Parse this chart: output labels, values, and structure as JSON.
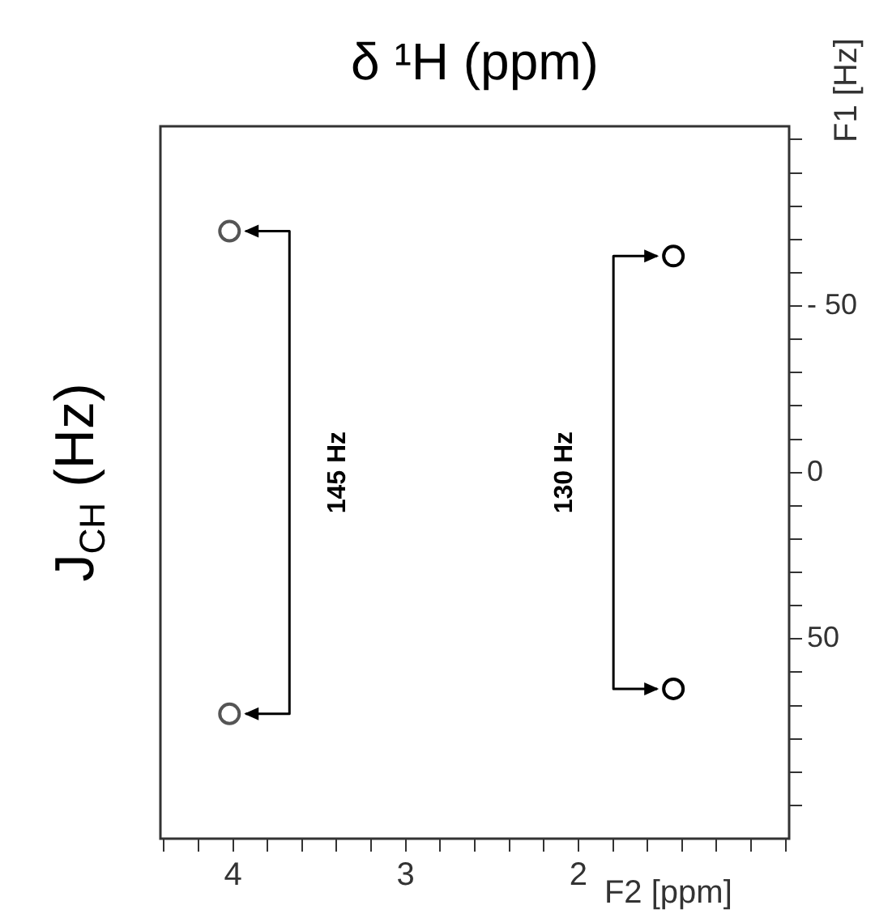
{
  "chart_data": {
    "type": "scatter",
    "title": "δ ¹H (ppm)",
    "xlabel": "F2 [ppm]",
    "ylabel": "F1 [Hz]",
    "annotations": [
      "145 Hz",
      "130 Hz",
      "J$_{CH}$ (Hz)"
    ],
    "x": [
      4.02,
      1.45
    ],
    "series": [
      {
        "colors": [
          "#555555",
          "#000000"
        ],
        "values": [
          -72.5,
          -65
        ]
      },
      {
        "colors": [
          "#555555",
          "#000000"
        ],
        "values": [
          72.5,
          65
        ]
      }
    ],
    "xlim": [
      4.42,
      0.78
    ],
    "xticks": [
      {
        "value": 4.4,
        "label": null
      },
      {
        "value": 4.2,
        "label": null
      },
      4,
      {
        "value": 3.8,
        "label": null
      },
      {
        "value": 3.6,
        "label": null
      },
      {
        "value": 3.4,
        "label": null
      },
      {
        "value": 3.2,
        "label": null
      },
      3,
      {
        "value": 2.8,
        "label": null
      },
      {
        "value": 2.6,
        "label": null
      },
      {
        "value": 2.4,
        "label": null
      },
      {
        "value": 2.2,
        "label": null
      },
      2,
      {
        "value": 1.8,
        "label": null
      },
      {
        "value": 1.6,
        "label": null
      },
      {
        "value": 1.4,
        "label": null
      },
      {
        "value": 1.2,
        "label": null
      },
      {
        "value": 1.0,
        "label": null
      },
      {
        "value": 0.8,
        "label": null
      }
    ],
    "ylim": [
      110,
      -104
    ],
    "yticks": [
      {
        "value": -100,
        "label": null
      },
      {
        "value": -90,
        "label": null
      },
      {
        "value": -80,
        "label": null
      },
      {
        "value": -70,
        "label": null
      },
      {
        "value": -60,
        "label": null
      },
      {
        "value": -50,
        "label": "- 50"
      },
      {
        "value": -40,
        "label": null
      },
      {
        "value": -30,
        "label": null
      },
      {
        "value": -20,
        "label": null
      },
      {
        "value": -10,
        "label": null
      },
      0,
      {
        "value": 10,
        "label": null
      },
      {
        "value": 20,
        "label": null
      },
      {
        "value": 30,
        "label": null
      },
      {
        "value": 40,
        "label": null
      },
      50,
      {
        "value": 60,
        "label": null
      },
      {
        "value": 70,
        "label": null
      },
      {
        "value": 80,
        "label": null
      },
      {
        "value": 90,
        "label": null
      },
      {
        "value": 100,
        "label": null
      }
    ],
    "grid": false,
    "legend": false,
    "marker": "circle"
  }
}
